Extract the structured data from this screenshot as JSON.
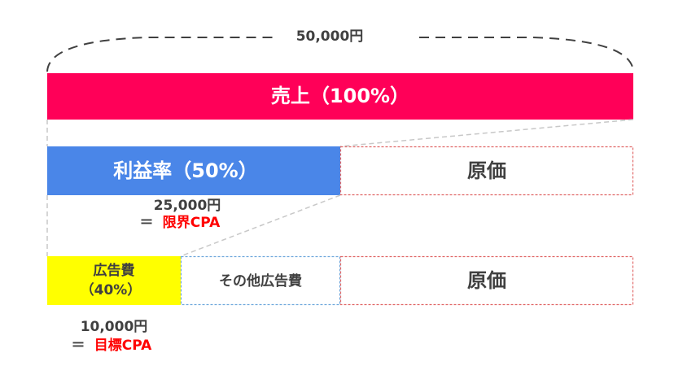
{
  "total": {
    "label": "50,000円"
  },
  "row1": {
    "label": "売上（100%）"
  },
  "row2": {
    "profit": "利益率（50%）",
    "cost": "原価",
    "amount": "25,000円",
    "equals": "＝",
    "name": "限界CPA"
  },
  "row3": {
    "ad_line1": "広告費",
    "ad_line2": "（40%）",
    "other_ad": "その他広告費",
    "cost": "原価",
    "amount": "10,000円",
    "equals": "＝",
    "name": "目標CPA"
  }
}
